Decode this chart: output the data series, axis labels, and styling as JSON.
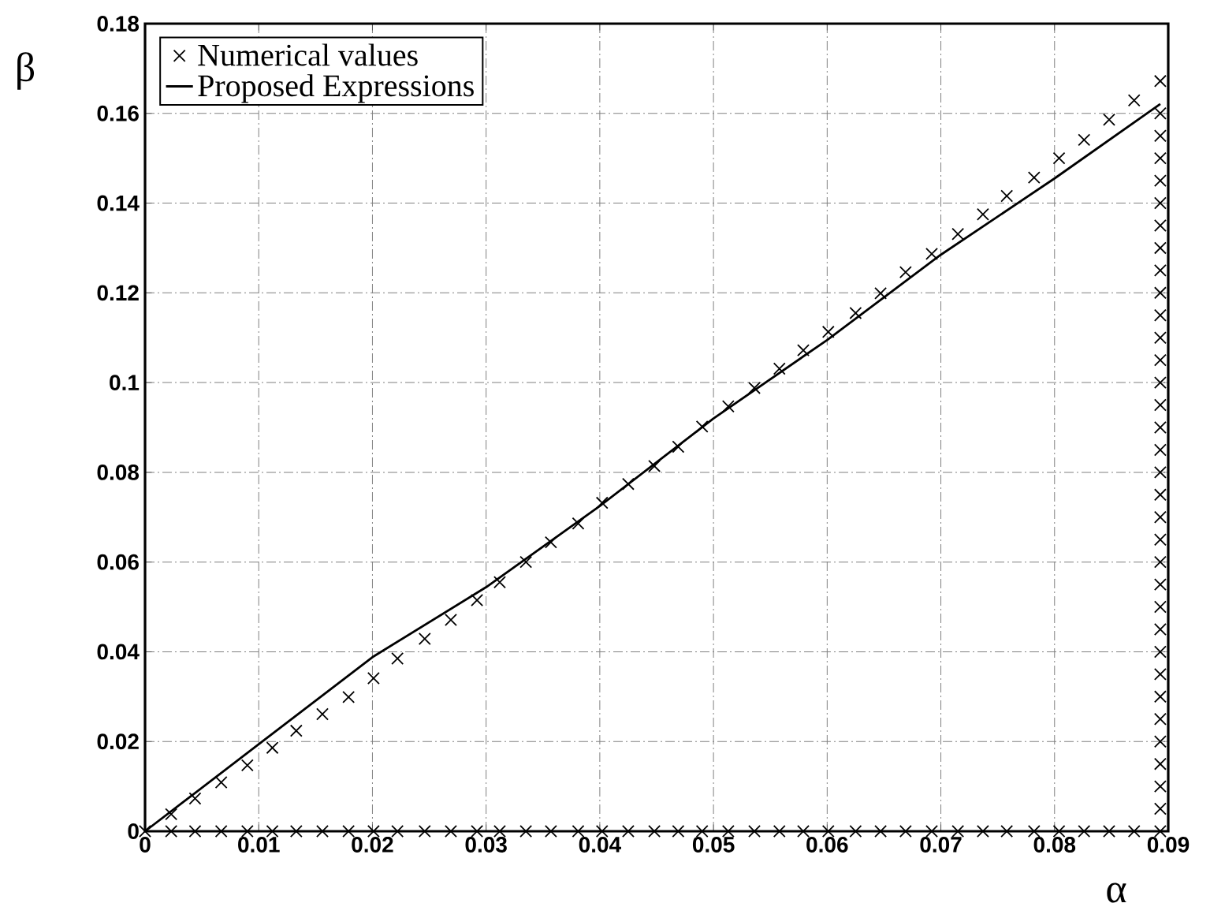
{
  "chart_data": {
    "type": "scatter",
    "xlabel": "α",
    "ylabel": "β",
    "xlim": [
      0,
      0.09
    ],
    "ylim": [
      0,
      0.18
    ],
    "xticks": [
      0,
      0.01,
      0.02,
      0.03,
      0.04,
      0.05,
      0.06,
      0.07,
      0.08,
      0.09
    ],
    "yticks": [
      0,
      0.02,
      0.04,
      0.06,
      0.08,
      0.1,
      0.12,
      0.14,
      0.16,
      0.18
    ],
    "grid": true,
    "legend": "top left",
    "series": [
      {
        "name": "Numerical values",
        "type": "scatter",
        "marker": "cross",
        "color": "#000000",
        "x": [
          0.0023,
          0.0044,
          0.0067,
          0.009,
          0.0112,
          0.0133,
          0.0156,
          0.0179,
          0.0201,
          0.0222,
          0.0246,
          0.0269,
          0.0292,
          0.0312,
          0.0335,
          0.0357,
          0.0381,
          0.0402,
          0.0425,
          0.0448,
          0.0469,
          0.049,
          0.0513,
          0.0536,
          0.0558,
          0.0579,
          0.0601,
          0.0625,
          0.0647,
          0.0669,
          0.0692,
          0.0715,
          0.0737,
          0.0758,
          0.0782,
          0.0804,
          0.0826,
          0.0848,
          0.087,
          0.0893,
          0,
          0.0023,
          0.0044,
          0.0067,
          0.009,
          0.0112,
          0.0133,
          0.0156,
          0.0179,
          0.0201,
          0.0222,
          0.0246,
          0.0269,
          0.0292,
          0.0312,
          0.0335,
          0.0357,
          0.0381,
          0.0402,
          0.0425,
          0.0448,
          0.0469,
          0.049,
          0.0513,
          0.0536,
          0.0558,
          0.0579,
          0.0601,
          0.0625,
          0.0647,
          0.0669,
          0.0692,
          0.0715,
          0.0737,
          0.0758,
          0.0782,
          0.0804,
          0.0826,
          0.0848,
          0.087,
          0.0893,
          0.0893,
          0.0893,
          0.0893,
          0.0893,
          0.0893,
          0.0893,
          0.0893,
          0.0893,
          0.0893,
          0.0893,
          0.0893,
          0.0893,
          0.0893,
          0.0893,
          0.0893,
          0.0893,
          0.0893,
          0.0893,
          0.0893,
          0.0893,
          0.0893,
          0.0893,
          0.0893,
          0.0893,
          0.0893,
          0.0893,
          0.0893,
          0.0893,
          0.0893,
          0.0893,
          0.0893,
          0.0893
        ],
        "values": [
          0.0038,
          0.0073,
          0.0109,
          0.0147,
          0.0186,
          0.0224,
          0.0261,
          0.0299,
          0.0341,
          0.0385,
          0.0429,
          0.0471,
          0.0515,
          0.0555,
          0.06,
          0.0644,
          0.0686,
          0.0732,
          0.0774,
          0.0814,
          0.0857,
          0.0902,
          0.0947,
          0.0988,
          0.1031,
          0.1072,
          0.1113,
          0.1155,
          0.1199,
          0.1246,
          0.1287,
          0.1331,
          0.1375,
          0.1416,
          0.1457,
          0.15,
          0.1541,
          0.1586,
          0.1629,
          0.1672,
          0,
          0,
          0,
          0,
          0,
          0,
          0,
          0,
          0,
          0,
          0,
          0,
          0,
          0,
          0,
          0,
          0,
          0,
          0,
          0,
          0,
          0,
          0,
          0,
          0,
          0,
          0,
          0,
          0,
          0,
          0,
          0,
          0,
          0,
          0,
          0,
          0,
          0,
          0,
          0,
          0,
          0.005,
          0.01,
          0.015,
          0.02,
          0.025,
          0.03,
          0.035,
          0.04,
          0.045,
          0.05,
          0.055,
          0.06,
          0.065,
          0.07,
          0.075,
          0.08,
          0.085,
          0.09,
          0.095,
          0.1,
          0.105,
          0.11,
          0.115,
          0.12,
          0.125,
          0.13,
          0.135,
          0.14,
          0.145,
          0.15,
          0.155,
          0.16
        ]
      },
      {
        "name": "Proposed Expressions",
        "type": "line",
        "marker": "none",
        "line_style": "solid",
        "color": "#000000",
        "x": [
          0,
          0.01,
          0.02,
          0.03,
          0.04,
          0.05,
          0.06,
          0.07,
          0.08,
          0.0893
        ],
        "values": [
          0,
          0.0194,
          0.0388,
          0.0544,
          0.0725,
          0.092,
          0.1095,
          0.1285,
          0.1455,
          0.1621
        ]
      }
    ]
  }
}
